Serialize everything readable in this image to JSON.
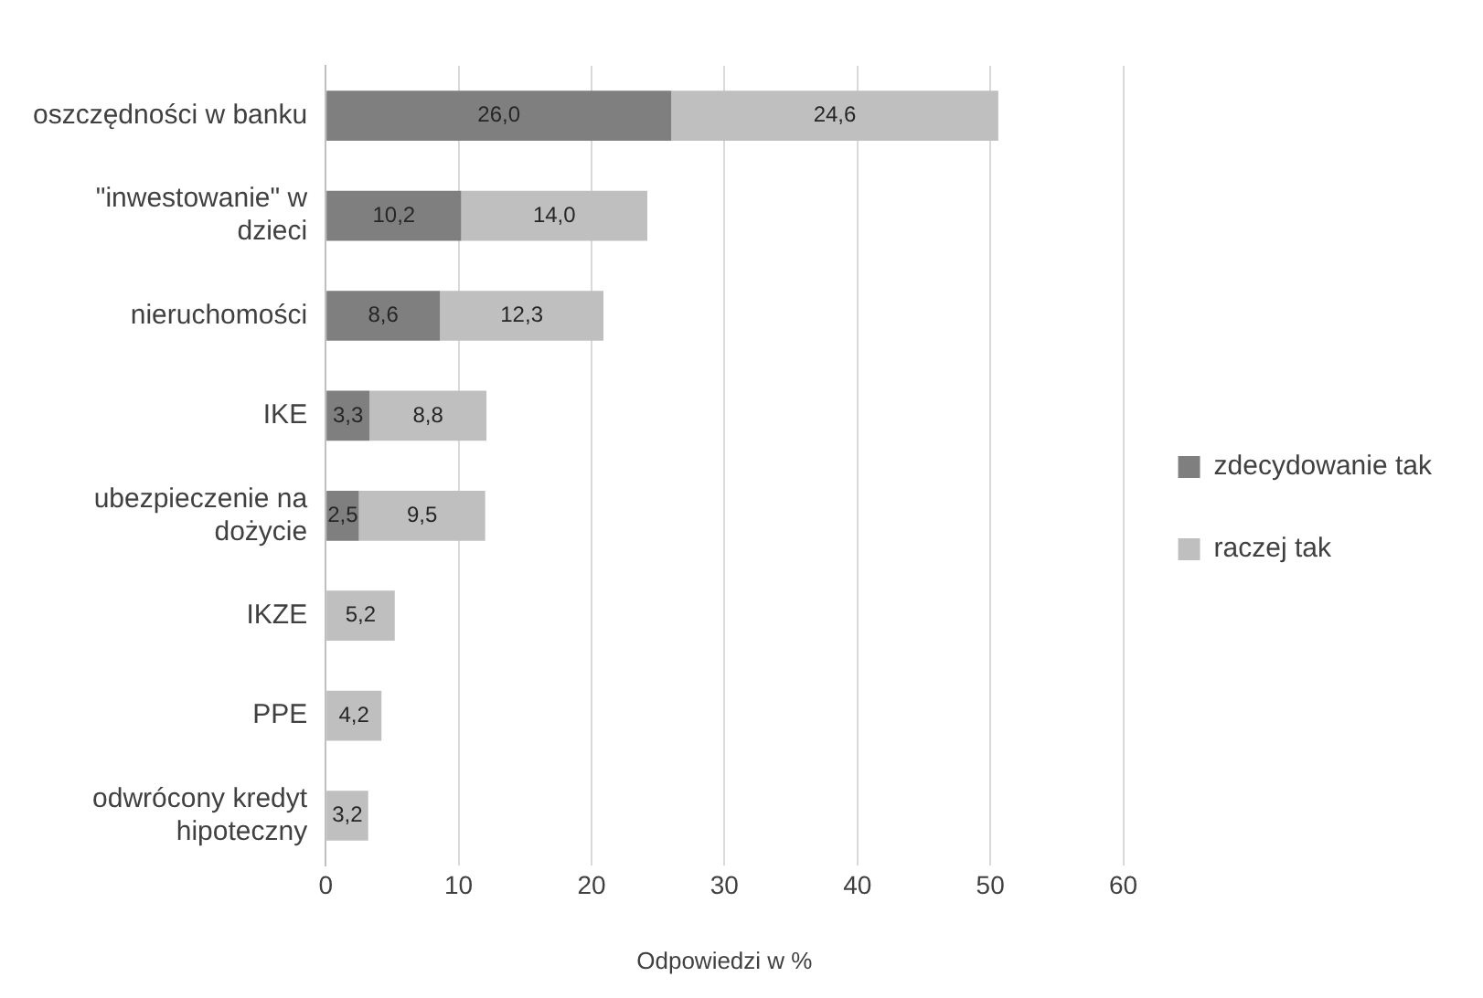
{
  "chart_data": {
    "type": "bar",
    "orientation": "horizontal",
    "stacked": true,
    "categories": [
      "oszczędności w banku",
      "\"inwestowanie\" w dzieci",
      "nieruchomości",
      "IKE",
      "ubezpieczenie na dożycie",
      "IKZE",
      "PPE",
      "odwrócony kredyt hipoteczny"
    ],
    "series": [
      {
        "name": "zdecydowanie tak",
        "color": "#7f7f7f",
        "values": [
          26.0,
          10.2,
          8.6,
          3.3,
          2.5,
          null,
          null,
          null
        ],
        "value_labels": [
          "26,0",
          "10,2",
          "8,6",
          "3,3",
          "2,5",
          null,
          null,
          null
        ]
      },
      {
        "name": "raczej tak",
        "color": "#bfbfbf",
        "values": [
          24.6,
          14.0,
          12.3,
          8.8,
          9.5,
          5.2,
          4.2,
          3.2
        ],
        "value_labels": [
          "24,6",
          "14,0",
          "12,3",
          "8,8",
          "9,5",
          "5,2",
          "4,2",
          "3,2"
        ]
      }
    ],
    "xlabel": "Odpowiedzi w %",
    "xlim": [
      0,
      60
    ],
    "xticks": [
      0,
      10,
      20,
      30,
      40,
      50,
      60
    ],
    "grid": "x",
    "legend": "right"
  }
}
